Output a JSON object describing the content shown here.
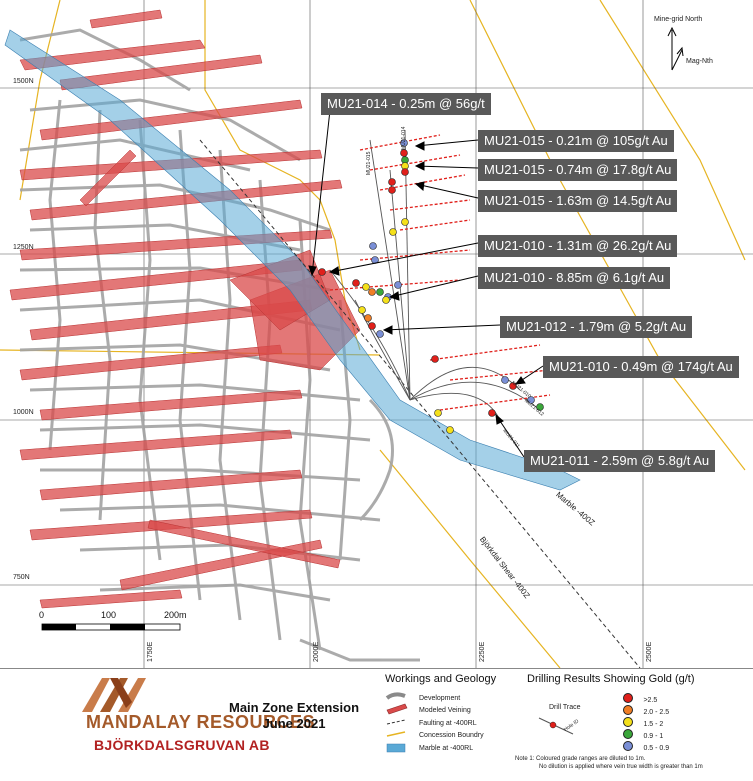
{
  "map": {
    "grid_labels_y": [
      "1500N",
      "1250N",
      "1000N",
      "750N"
    ],
    "grid_labels_x": [
      "1750E",
      "2000E",
      "2250E",
      "2500E"
    ],
    "north_labels": {
      "mine_grid": "Mine-grid North",
      "mag": "Mag-Nth"
    },
    "scale": {
      "labels": [
        "0",
        "100",
        "200m"
      ]
    },
    "feature_labels": {
      "marble": "Marble -400Z",
      "shear": "Björkdal Shear -400Z"
    },
    "hole_labels": [
      "MU21-014",
      "MU21-015",
      "MU21-010",
      "MU21-012",
      "MU21-011"
    ],
    "colors": {
      "veins": "#d94a4a",
      "development": "#a0a0a0",
      "concession": "#e6b422",
      "marble": "#5aa9d6",
      "callout_bg": "#595959"
    }
  },
  "callouts": [
    {
      "text": "MU21-014 - 0.25m @ 56g/t"
    },
    {
      "text": "MU21-015 - 0.21m @ 105g/t Au"
    },
    {
      "text": "MU21-015 - 0.74m @ 17.8g/t Au"
    },
    {
      "text": "MU21-015 - 1.63m @ 14.5g/t Au"
    },
    {
      "text": "MU21-010 - 1.31m @ 26.2g/t Au"
    },
    {
      "text": "MU21-010 - 8.85m @ 6.1g/t Au"
    },
    {
      "text": "MU21-012 - 1.79m @ 5.2g/t Au"
    },
    {
      "text": "MU21-010 - 0.49m @ 174g/t Au"
    },
    {
      "text": "MU21-011 - 2.59m @ 5.8g/t Au"
    }
  ],
  "footer": {
    "logo_name": "MANDALAY RESOURCES",
    "logo_sub": "BJÖRKDALSGRUVAN AB",
    "title_line1": "Main Zone Extension",
    "title_line2": "June 2021",
    "workings_title": "Workings and Geology",
    "workings_items": [
      "Development",
      "Modeled Veining",
      "Faulting at -400RL",
      "Concession Boundry",
      "Marble at -400RL"
    ],
    "drilling_title": "Drilling Results Showing Gold (g/t)",
    "drill_trace_label": "Drill Trace",
    "hole_id_label": "Hole ID",
    "grade_legend": [
      {
        "label": ">2.5",
        "color": "#e0201b"
      },
      {
        "label": "2.0 - 2.5",
        "color": "#f07e26"
      },
      {
        "label": "1.5 - 2",
        "color": "#f4e01b"
      },
      {
        "label": "0.9 - 1",
        "color": "#3aa63a"
      },
      {
        "label": "0.5 - 0.9",
        "color": "#7a8fd6"
      }
    ],
    "note_line1": "Note 1:  Coloured grade ranges are diluted to 1m.",
    "note_line2": "No dilution is applied where vein true width is greater than 1m"
  }
}
